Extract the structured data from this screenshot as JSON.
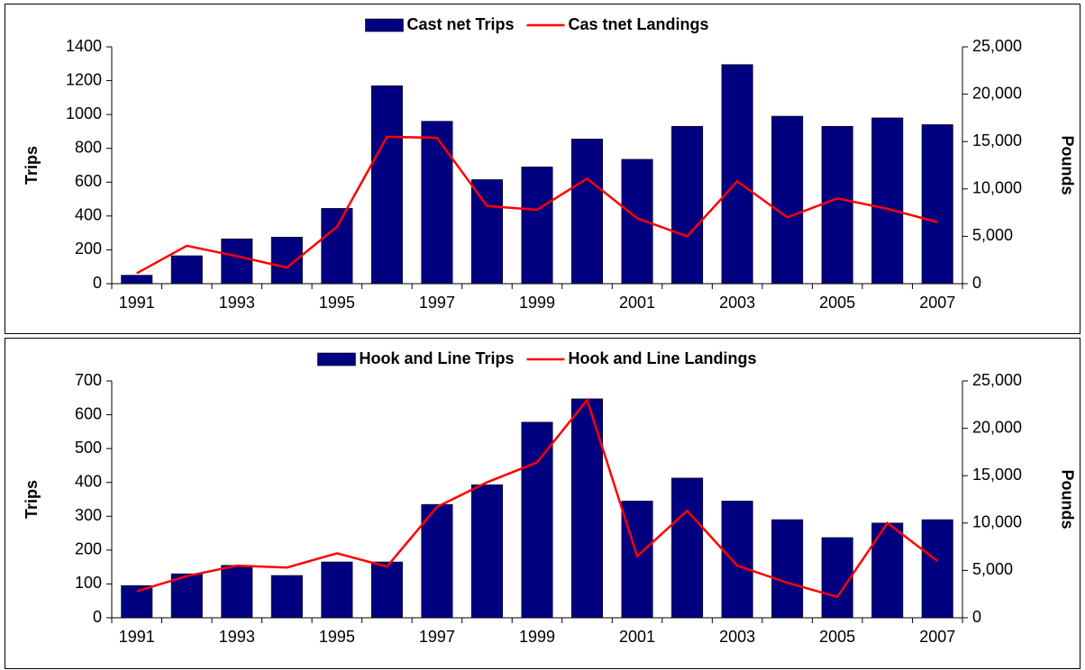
{
  "chart_data": [
    {
      "type": "bar",
      "categories": [
        "1991",
        null,
        "1993",
        null,
        "1995",
        null,
        "1997",
        null,
        "1999",
        null,
        "2001",
        null,
        "2003",
        null,
        "2005",
        null,
        "2007"
      ],
      "series": [
        {
          "name": "Cast net Trips",
          "type": "bar",
          "color": "#000080",
          "values": [
            50,
            165,
            265,
            275,
            445,
            1170,
            960,
            615,
            690,
            855,
            735,
            930,
            1295,
            990,
            930,
            980,
            940
          ]
        },
        {
          "name": "Cas tnet Landings",
          "type": "line",
          "axis": "y2",
          "color": "#ff0000",
          "values": [
            1100,
            4000,
            2900,
            1700,
            6000,
            15500,
            15400,
            8200,
            7800,
            11100,
            6900,
            5000,
            10800,
            7000,
            9000,
            7900,
            6500
          ]
        }
      ],
      "y_label": "Trips",
      "y2_label": "Pounds",
      "ylim": [
        0,
        1400
      ],
      "yticks": [
        0,
        200,
        400,
        600,
        800,
        1000,
        1200,
        1400
      ],
      "y2lim": [
        0,
        25000
      ],
      "y2ticks": [
        0,
        {
          "value": 5000,
          "label": "5,000"
        },
        {
          "value": 10000,
          "label": "10,000"
        },
        {
          "value": 15000,
          "label": "15,000"
        },
        {
          "value": 20000,
          "label": "20,000"
        },
        {
          "value": 25000,
          "label": "25,000"
        }
      ],
      "grid": false,
      "legend": "top"
    },
    {
      "type": "bar",
      "categories": [
        "1991",
        null,
        "1993",
        null,
        "1995",
        null,
        "1997",
        null,
        "1999",
        null,
        "2001",
        null,
        "2003",
        null,
        "2005",
        null,
        "2007"
      ],
      "series": [
        {
          "name": "Hook and Line Trips",
          "type": "bar",
          "color": "#000080",
          "values": [
            95,
            130,
            155,
            125,
            165,
            165,
            335,
            393,
            578,
            647,
            345,
            413,
            345,
            290,
            237,
            280,
            290
          ]
        },
        {
          "name": "Hook and Line Landings",
          "type": "line",
          "axis": "y2",
          "color": "#ff0000",
          "values": [
            2800,
            4400,
            5500,
            5300,
            6800,
            5400,
            11700,
            14300,
            16400,
            23000,
            6500,
            11300,
            5500,
            3700,
            2200,
            10000,
            6000
          ]
        }
      ],
      "y_label": "Trips",
      "y2_label": "Pounds",
      "ylim": [
        0,
        700
      ],
      "yticks": [
        0,
        100,
        200,
        300,
        400,
        500,
        600,
        700
      ],
      "y2lim": [
        0,
        25000
      ],
      "y2ticks": [
        0,
        {
          "value": 5000,
          "label": "5,000"
        },
        {
          "value": 10000,
          "label": "10,000"
        },
        {
          "value": 15000,
          "label": "15,000"
        },
        {
          "value": 20000,
          "label": "20,000"
        },
        {
          "value": 25000,
          "label": "25,000"
        }
      ],
      "grid": false,
      "legend": "top"
    }
  ]
}
